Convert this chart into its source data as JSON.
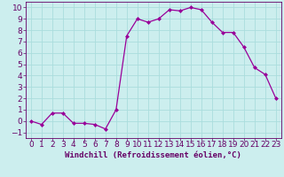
{
  "x": [
    0,
    1,
    2,
    3,
    4,
    5,
    6,
    7,
    8,
    9,
    10,
    11,
    12,
    13,
    14,
    15,
    16,
    17,
    18,
    19,
    20,
    21,
    22,
    23
  ],
  "y": [
    0.0,
    -0.3,
    0.7,
    0.7,
    -0.2,
    -0.2,
    -0.3,
    -0.7,
    1.0,
    7.5,
    9.0,
    8.7,
    9.0,
    9.8,
    9.7,
    10.0,
    9.8,
    8.7,
    7.8,
    7.8,
    6.5,
    4.7,
    4.1,
    2.0
  ],
  "line_color": "#990099",
  "marker": "D",
  "marker_size": 2.0,
  "bg_color": "#cceeee",
  "grid_color": "#aadddd",
  "xlabel": "Windchill (Refroidissement éolien,°C)",
  "xlabel_color": "#660066",
  "xlabel_fontsize": 6.5,
  "tick_color": "#660066",
  "tick_fontsize": 6.5,
  "ylim": [
    -1.5,
    10.5
  ],
  "xlim": [
    -0.5,
    23.5
  ],
  "yticks": [
    -1,
    0,
    1,
    2,
    3,
    4,
    5,
    6,
    7,
    8,
    9,
    10
  ],
  "xticks": [
    0,
    1,
    2,
    3,
    4,
    5,
    6,
    7,
    8,
    9,
    10,
    11,
    12,
    13,
    14,
    15,
    16,
    17,
    18,
    19,
    20,
    21,
    22,
    23
  ]
}
